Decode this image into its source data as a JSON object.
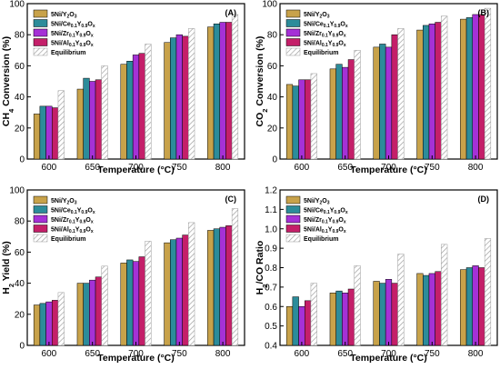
{
  "colors": {
    "5Ni/Y2O3": "#c8a24a",
    "5Ni/Ce0.1Y0.9Ox": "#2c8c9a",
    "5Ni/Zr0.1Y0.9Ox": "#a531d6",
    "5Ni/Al0.1Y0.9Ox": "#c41f69",
    "Equilibrium": "#ffffff",
    "hatch": "#9a9a9a",
    "axis": "#000000"
  },
  "legend_entries": [
    {
      "key": "5Ni/Y2O3",
      "main": "5Ni/Y",
      "sub1": "2",
      "mid": "O",
      "sub2": "3",
      "tail": "",
      "sub3": ""
    },
    {
      "key": "5Ni/Ce0.1Y0.9Ox",
      "main": "5Ni/Ce",
      "sub1": "0.1",
      "mid": "Y",
      "sub2": "0.9",
      "tail": "O",
      "sub3": "x"
    },
    {
      "key": "5Ni/Zr0.1Y0.9Ox",
      "main": "5Ni/Zr",
      "sub1": "0.1",
      "mid": "Y",
      "sub2": "0.9",
      "tail": "O",
      "sub3": "x"
    },
    {
      "key": "5Ni/Al0.1Y0.9Ox",
      "main": "5Ni/Al",
      "sub1": "0.1",
      "mid": "Y",
      "sub2": "0.9",
      "tail": "O",
      "sub3": "x"
    },
    {
      "key": "Equilibrium",
      "main": "Equilibrium",
      "sub1": "",
      "mid": "",
      "sub2": "",
      "tail": "",
      "sub3": ""
    }
  ],
  "chart_data": [
    {
      "type": "bar",
      "panel": "(A)",
      "ylabel": {
        "pre": "CH",
        "sub": "4",
        "post": " Conversion (%)"
      },
      "xlabel": "Temperature (°C)",
      "categories": [
        "600",
        "650",
        "700",
        "750",
        "800"
      ],
      "ylim": [
        0,
        100
      ],
      "yticks": [
        0,
        20,
        40,
        60,
        80,
        100
      ],
      "series": [
        {
          "name": "5Ni/Y2O3",
          "values": [
            29,
            45,
            61,
            75,
            85
          ]
        },
        {
          "name": "5Ni/Ce0.1Y0.9Ox",
          "values": [
            34,
            52,
            63,
            78,
            87
          ]
        },
        {
          "name": "5Ni/Zr0.1Y0.9Ox",
          "values": [
            34,
            50,
            67,
            80,
            88
          ]
        },
        {
          "name": "5Ni/Al0.1Y0.9Ox",
          "values": [
            33,
            51,
            68,
            79,
            88
          ]
        },
        {
          "name": "Equilibrium",
          "values": [
            44,
            60,
            74,
            84,
            93
          ]
        }
      ],
      "legend": "top-left"
    },
    {
      "type": "bar",
      "panel": "(B)",
      "ylabel": {
        "pre": "CO",
        "sub": "2",
        "post": " Conversion (%)"
      },
      "xlabel": "Temperature (°C)",
      "categories": [
        "600",
        "650",
        "700",
        "750",
        "800"
      ],
      "ylim": [
        0,
        100
      ],
      "yticks": [
        0,
        20,
        40,
        60,
        80,
        100
      ],
      "series": [
        {
          "name": "5Ni/Y2O3",
          "values": [
            48,
            58,
            72,
            83,
            90
          ]
        },
        {
          "name": "5Ni/Ce0.1Y0.9Ox",
          "values": [
            47,
            61,
            74,
            86,
            91
          ]
        },
        {
          "name": "5Ni/Zr0.1Y0.9Ox",
          "values": [
            51,
            59,
            72,
            87,
            93
          ]
        },
        {
          "name": "5Ni/Al0.1Y0.9Ox",
          "values": [
            51,
            64,
            80,
            88,
            93
          ]
        },
        {
          "name": "Equilibrium",
          "values": [
            55,
            70,
            84,
            92,
            97
          ]
        }
      ],
      "legend": "top-left"
    },
    {
      "type": "bar",
      "panel": "(C)",
      "ylabel": {
        "pre": "H",
        "sub": "2",
        "post": " Yield (%)"
      },
      "xlabel": "Temperature (°C)",
      "categories": [
        "600",
        "650",
        "700",
        "750",
        "800"
      ],
      "ylim": [
        0,
        100
      ],
      "yticks": [
        0,
        20,
        40,
        60,
        80,
        100
      ],
      "series": [
        {
          "name": "5Ni/Y2O3",
          "values": [
            26,
            40,
            53,
            66,
            74
          ]
        },
        {
          "name": "5Ni/Ce0.1Y0.9Ox",
          "values": [
            27,
            40,
            55,
            68,
            75
          ]
        },
        {
          "name": "5Ni/Zr0.1Y0.9Ox",
          "values": [
            28,
            42,
            54,
            69,
            76
          ]
        },
        {
          "name": "5Ni/Al0.1Y0.9Ox",
          "values": [
            29,
            44,
            57,
            71,
            77
          ]
        },
        {
          "name": "Equilibrium",
          "values": [
            34,
            51,
            67,
            79,
            88
          ]
        }
      ],
      "legend": "top-left"
    },
    {
      "type": "bar",
      "panel": "(D)",
      "ylabel": {
        "pre": "H",
        "sub": "2",
        "post": "/CO Ratio"
      },
      "xlabel": "Temperature (°C)",
      "categories": [
        "600",
        "650",
        "700",
        "750",
        "800"
      ],
      "ylim": [
        0.4,
        1.2
      ],
      "yticks": [
        0.4,
        0.5,
        0.6,
        0.7,
        0.8,
        0.9,
        1.0,
        1.1,
        1.2
      ],
      "series": [
        {
          "name": "5Ni/Y2O3",
          "values": [
            0.6,
            0.67,
            0.73,
            0.77,
            0.79
          ]
        },
        {
          "name": "5Ni/Ce0.1Y0.9Ox",
          "values": [
            0.65,
            0.68,
            0.72,
            0.76,
            0.8
          ]
        },
        {
          "name": "5Ni/Zr0.1Y0.9Ox",
          "values": [
            0.6,
            0.67,
            0.74,
            0.77,
            0.81
          ]
        },
        {
          "name": "5Ni/Al0.1Y0.9Ox",
          "values": [
            0.63,
            0.69,
            0.72,
            0.78,
            0.8
          ]
        },
        {
          "name": "Equilibrium",
          "values": [
            0.72,
            0.81,
            0.87,
            0.92,
            0.95
          ]
        }
      ],
      "legend": "top-left"
    }
  ]
}
